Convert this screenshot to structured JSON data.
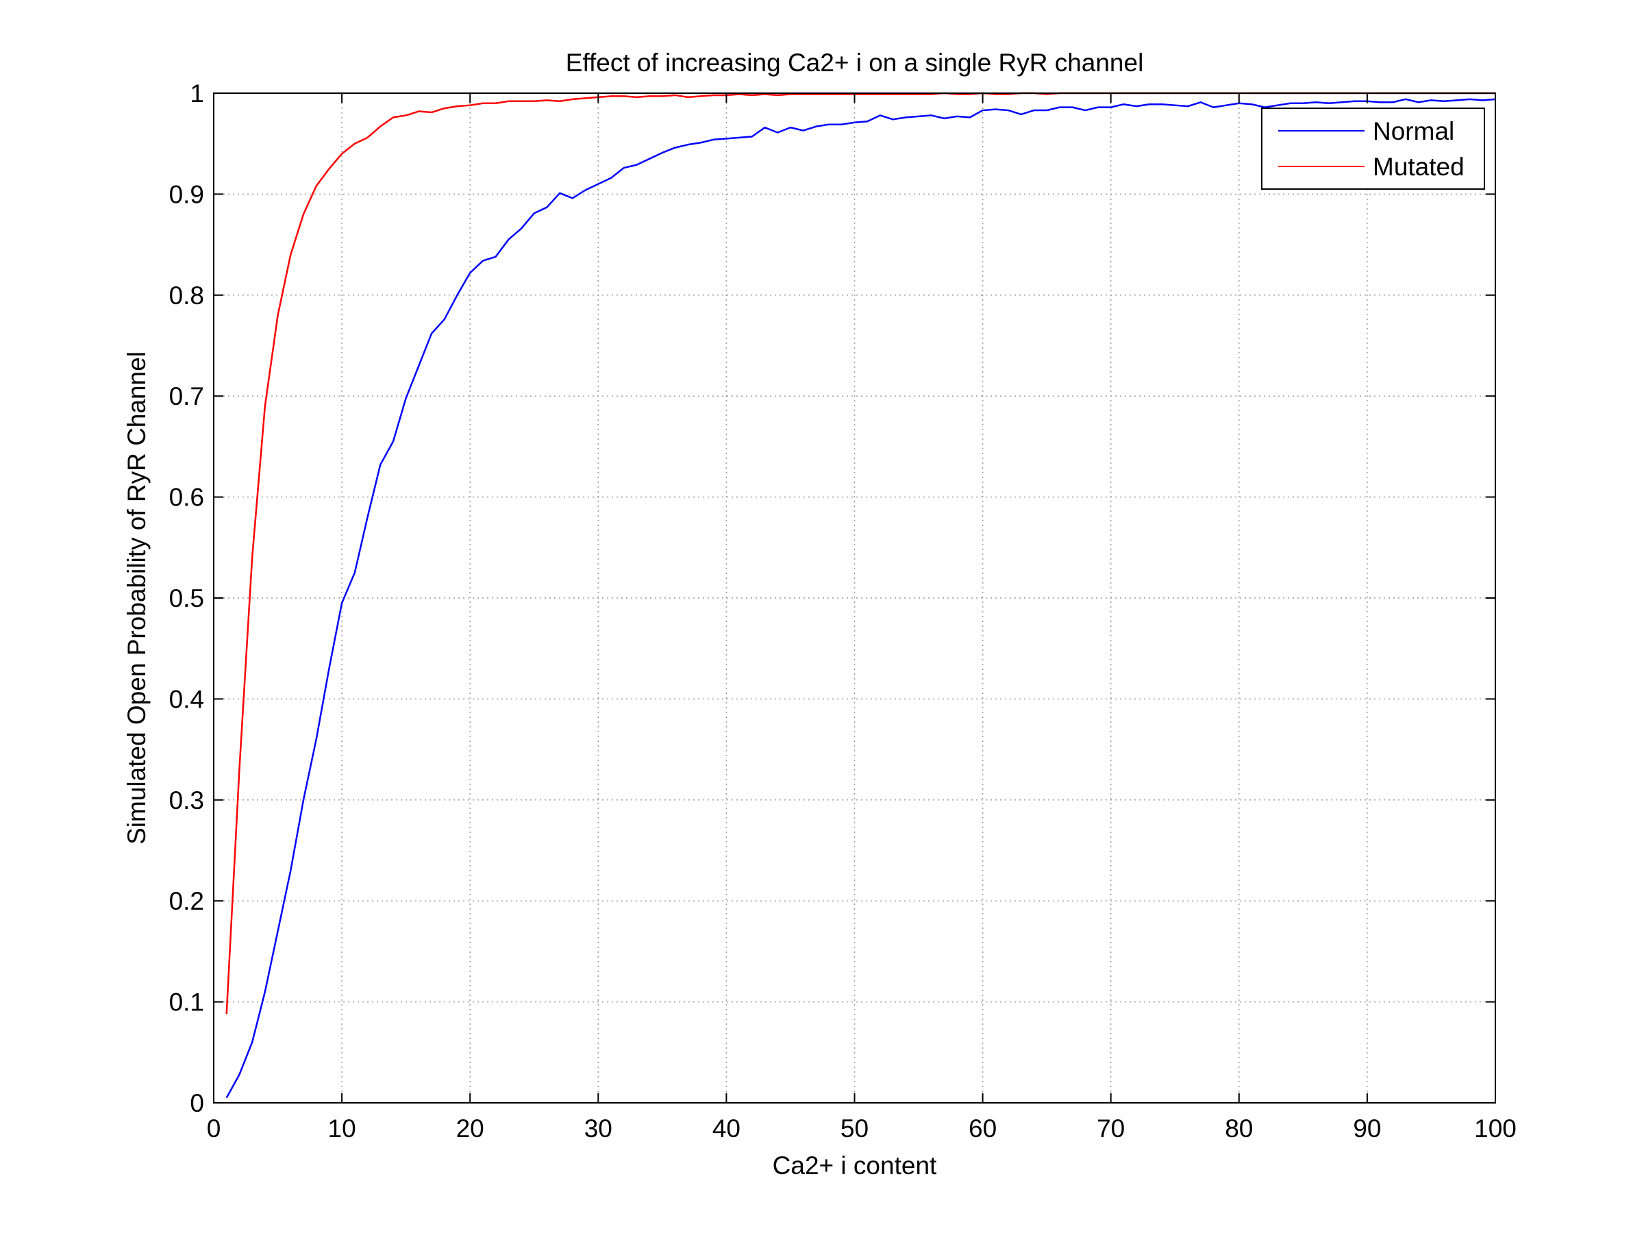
{
  "chart_data": {
    "type": "line",
    "title": "Effect of increasing Ca2+ i on a single RyR channel",
    "xlabel": "Ca2+ i content",
    "ylabel": "Simulated Open Probability of RyR Channel",
    "xlim": [
      0,
      100
    ],
    "ylim": [
      0,
      1
    ],
    "xticks": [
      0,
      10,
      20,
      30,
      40,
      50,
      60,
      70,
      80,
      90,
      100
    ],
    "yticks": [
      0,
      0.1,
      0.2,
      0.3,
      0.4,
      0.5,
      0.6,
      0.7,
      0.8,
      0.9,
      1
    ],
    "xtick_labels": [
      "0",
      "10",
      "20",
      "30",
      "40",
      "50",
      "60",
      "70",
      "80",
      "90",
      "100"
    ],
    "ytick_labels": [
      "0",
      "0.1",
      "0.2",
      "0.3",
      "0.4",
      "0.5",
      "0.6",
      "0.7",
      "0.8",
      "0.9",
      "1"
    ],
    "grid": true,
    "legend_position": "top-right",
    "x": [
      1,
      2,
      3,
      4,
      5,
      6,
      7,
      8,
      9,
      10,
      11,
      12,
      13,
      14,
      15,
      16,
      17,
      18,
      19,
      20,
      21,
      22,
      23,
      24,
      25,
      26,
      27,
      28,
      29,
      30,
      31,
      32,
      33,
      34,
      35,
      36,
      37,
      38,
      39,
      40,
      41,
      42,
      43,
      44,
      45,
      46,
      47,
      48,
      49,
      50,
      51,
      52,
      53,
      54,
      55,
      56,
      57,
      58,
      59,
      60,
      61,
      62,
      63,
      64,
      65,
      66,
      67,
      68,
      69,
      70,
      71,
      72,
      73,
      74,
      75,
      76,
      77,
      78,
      79,
      80,
      81,
      82,
      83,
      84,
      85,
      86,
      87,
      88,
      89,
      90,
      91,
      92,
      93,
      94,
      95,
      96,
      97,
      98,
      99,
      100
    ],
    "series": [
      {
        "name": "Normal",
        "color": "#0000ff",
        "values": [
          0.005,
          0.028,
          0.06,
          0.11,
          0.17,
          0.23,
          0.3,
          0.36,
          0.43,
          0.495,
          0.525,
          0.58,
          0.632,
          0.655,
          0.698,
          0.73,
          0.762,
          0.776,
          0.8,
          0.822,
          0.834,
          0.838,
          0.855,
          0.866,
          0.881,
          0.887,
          0.901,
          0.896,
          0.904,
          0.91,
          0.916,
          0.926,
          0.929,
          0.935,
          0.941,
          0.946,
          0.949,
          0.951,
          0.954,
          0.955,
          0.956,
          0.957,
          0.966,
          0.961,
          0.966,
          0.963,
          0.967,
          0.969,
          0.969,
          0.971,
          0.972,
          0.978,
          0.974,
          0.976,
          0.977,
          0.978,
          0.975,
          0.977,
          0.976,
          0.983,
          0.984,
          0.983,
          0.979,
          0.983,
          0.983,
          0.986,
          0.986,
          0.983,
          0.986,
          0.986,
          0.989,
          0.987,
          0.989,
          0.989,
          0.988,
          0.987,
          0.991,
          0.986,
          0.988,
          0.99,
          0.989,
          0.986,
          0.988,
          0.99,
          0.99,
          0.991,
          0.99,
          0.991,
          0.992,
          0.992,
          0.991,
          0.991,
          0.994,
          0.991,
          0.993,
          0.992,
          0.993,
          0.994,
          0.993,
          0.994
        ]
      },
      {
        "name": "Mutated",
        "color": "#ff0000",
        "values": [
          0.088,
          0.33,
          0.54,
          0.69,
          0.78,
          0.84,
          0.88,
          0.908,
          0.925,
          0.94,
          0.95,
          0.956,
          0.967,
          0.976,
          0.978,
          0.982,
          0.981,
          0.985,
          0.987,
          0.988,
          0.99,
          0.99,
          0.992,
          0.992,
          0.992,
          0.993,
          0.992,
          0.994,
          0.995,
          0.996,
          0.997,
          0.997,
          0.996,
          0.997,
          0.997,
          0.998,
          0.996,
          0.997,
          0.998,
          0.998,
          0.999,
          0.998,
          0.999,
          0.998,
          0.999,
          0.999,
          0.999,
          0.999,
          0.999,
          0.999,
          0.999,
          0.999,
          0.999,
          0.999,
          0.999,
          0.999,
          1,
          0.999,
          0.999,
          1,
          0.999,
          0.999,
          1,
          1,
          0.999,
          1,
          1,
          1,
          1,
          1,
          1,
          1,
          1,
          1,
          1,
          1,
          1,
          1,
          1,
          1,
          1,
          1,
          1,
          1,
          1,
          1,
          1,
          1,
          1,
          1,
          1,
          1,
          1,
          1,
          1,
          1,
          1,
          1,
          1,
          1
        ]
      }
    ]
  }
}
